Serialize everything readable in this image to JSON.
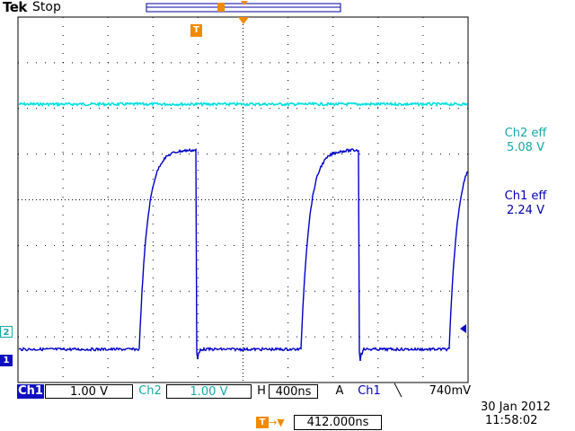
{
  "header": {
    "brand": "Tek",
    "state": "Stop"
  },
  "measurements": {
    "ch2_label": "Ch2 eff",
    "ch2_value": "5.08 V",
    "ch1_label": "Ch1 eff",
    "ch1_value": "2.24 V"
  },
  "settings": {
    "ch1_tag": "Ch1",
    "ch1_scale": "1.00 V",
    "ch2_tag": "Ch2",
    "ch2_scale": "1.00 V",
    "h_label": "H",
    "h_scale": "400ns",
    "trigger_mode": "A",
    "trigger_source": "Ch1",
    "trigger_slope": "╲",
    "trigger_level": "740mV"
  },
  "footer": {
    "date": "30 Jan  2012",
    "time": "11:58:02",
    "trigger_marker": "T",
    "trigger_time": "412.000ns"
  },
  "markers": {
    "trigger": "T",
    "ch2": "2",
    "ch1": "1"
  },
  "colors": {
    "ch1": "#0000c8",
    "ch2": "#00e0e0",
    "trigger": "#f08a00",
    "grid": "#000000"
  },
  "icons": {
    "trigger_marker": "orange-T-marker-icon",
    "trigger_pointer": "orange-triangle-icon",
    "level_marker": "blue-left-arrow-icon"
  }
}
